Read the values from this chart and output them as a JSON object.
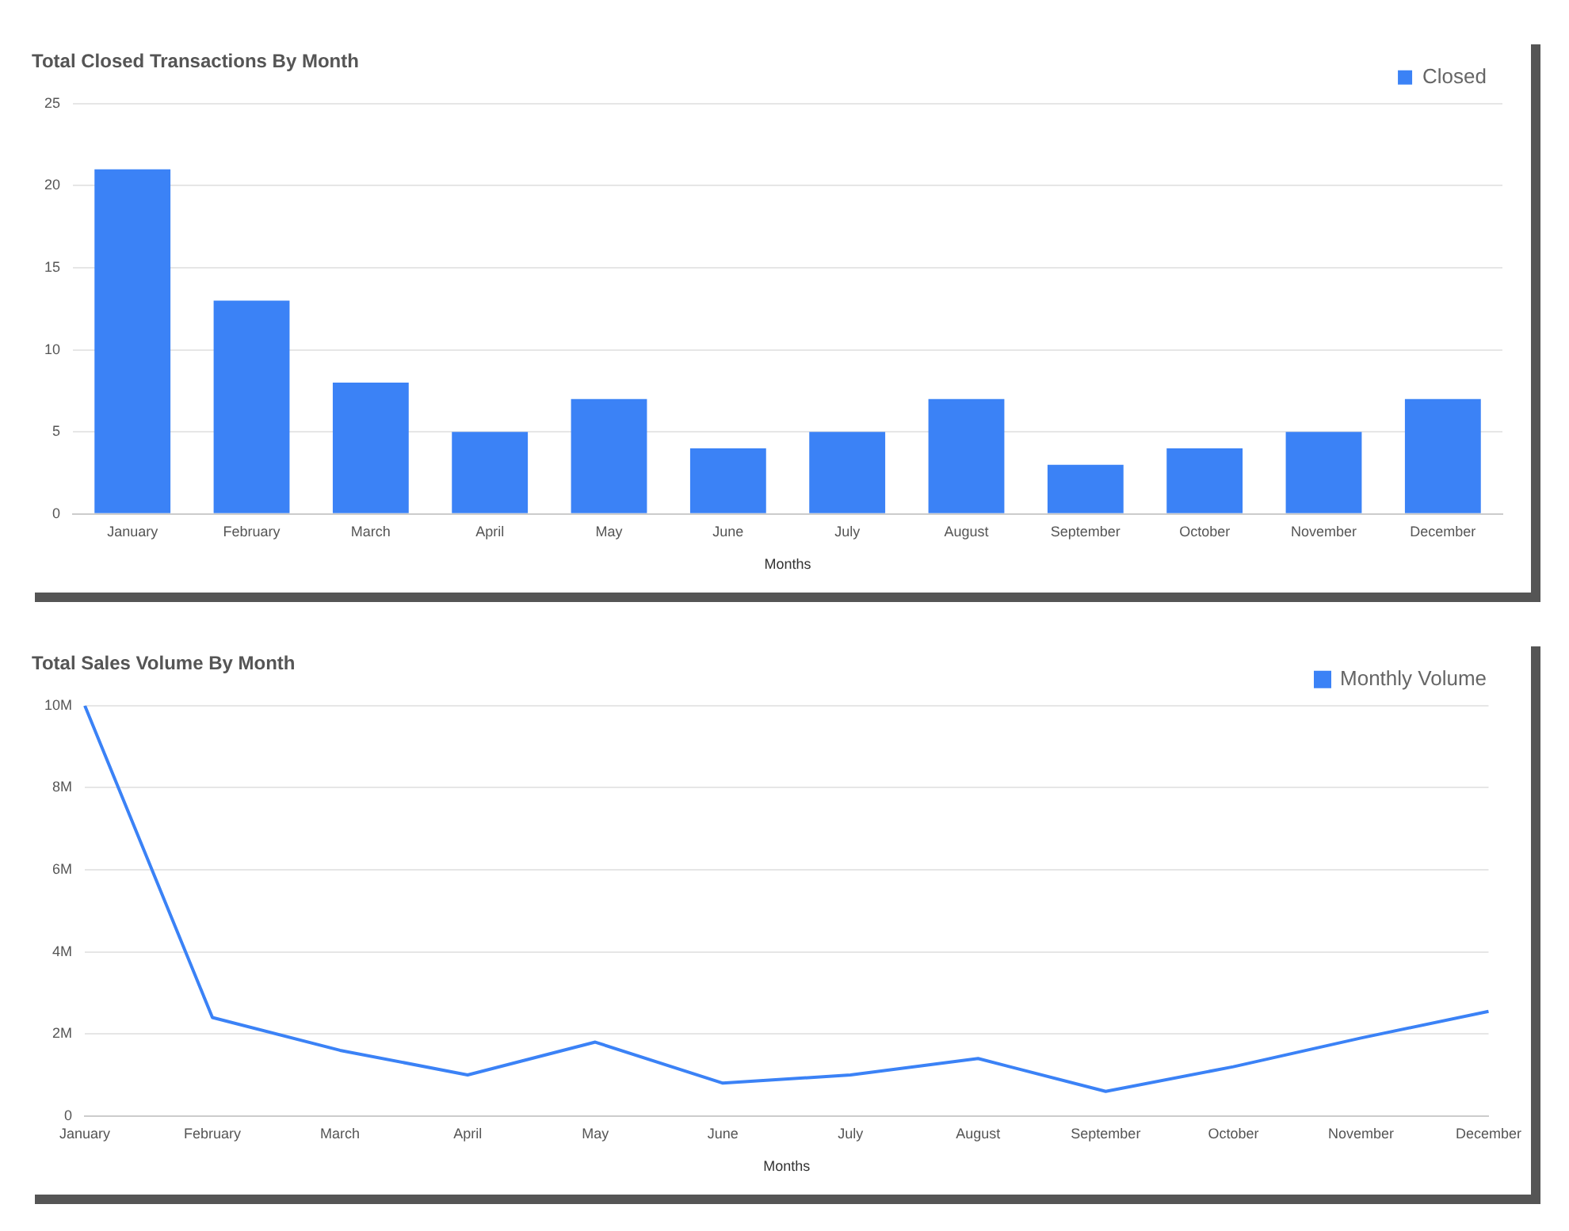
{
  "chart_data": [
    {
      "type": "bar",
      "title": "Total Closed Transactions By Month",
      "xlabel": "Months",
      "categories": [
        "January",
        "February",
        "March",
        "April",
        "May",
        "June",
        "July",
        "August",
        "September",
        "October",
        "November",
        "December"
      ],
      "series": [
        {
          "name": "Closed",
          "color": "#3b82f6",
          "values": [
            21,
            13,
            8,
            5,
            7,
            4,
            5,
            7,
            3,
            4,
            5,
            7
          ]
        }
      ],
      "ylim": [
        0,
        25
      ],
      "yticks": [
        0,
        5,
        10,
        15,
        20,
        25
      ],
      "grid": "y",
      "legend": "top right"
    },
    {
      "type": "line",
      "title": "Total Sales Volume By Month",
      "xlabel": "Months",
      "categories": [
        "January",
        "February",
        "March",
        "April",
        "May",
        "June",
        "July",
        "August",
        "September",
        "October",
        "November",
        "December"
      ],
      "series": [
        {
          "name": "Monthly Volume",
          "color": "#3b82f6",
          "values": [
            10000000,
            2400000,
            1600000,
            1000000,
            1800000,
            800000,
            1000000,
            1400000,
            600000,
            1200000,
            1900000,
            2550000
          ]
        }
      ],
      "ylim": [
        0,
        10000000
      ],
      "yticks": [
        0,
        {
          "value": 2000000,
          "label": "2M"
        },
        {
          "value": 4000000,
          "label": "4M"
        },
        {
          "value": 6000000,
          "label": "6M"
        },
        {
          "value": 8000000,
          "label": "8M"
        },
        {
          "value": 10000000,
          "label": "10M"
        }
      ],
      "grid": "y",
      "legend": "top right"
    }
  ]
}
